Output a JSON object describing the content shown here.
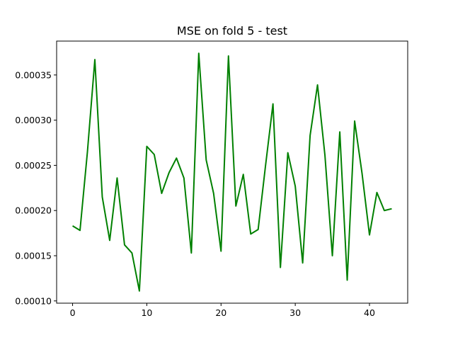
{
  "chart_data": {
    "type": "line",
    "title": "MSE on fold 5 - test",
    "xlabel": "",
    "ylabel": "",
    "xlim": [
      -2.15,
      45.15
    ],
    "ylim": [
      9.75e-05,
      0.0003875
    ],
    "grid": false,
    "x_ticks": [
      0,
      10,
      20,
      30,
      40
    ],
    "x_tick_labels": [
      "0",
      "10",
      "20",
      "30",
      "40"
    ],
    "y_ticks": [
      0.0001,
      0.00015,
      0.0002,
      0.00025,
      0.0003,
      0.00035
    ],
    "y_tick_labels": [
      "0.00010",
      "0.00015",
      "0.00020",
      "0.00025",
      "0.00030",
      "0.00035"
    ],
    "series": [
      {
        "color": "#008000",
        "x": [
          0,
          1,
          2,
          3,
          4,
          5,
          6,
          7,
          8,
          9,
          10,
          11,
          12,
          13,
          14,
          15,
          16,
          17,
          18,
          19,
          20,
          21,
          22,
          23,
          24,
          25,
          26,
          27,
          28,
          29,
          30,
          31,
          32,
          33,
          34,
          35,
          36,
          37,
          38,
          39,
          40,
          41,
          42,
          43
        ],
        "values": [
          0.000183,
          0.000178,
          0.000265,
          0.000367,
          0.000215,
          0.000167,
          0.000236,
          0.000162,
          0.000153,
          0.000111,
          0.000271,
          0.000262,
          0.000219,
          0.000242,
          0.000258,
          0.000236,
          0.000153,
          0.000374,
          0.000256,
          0.000219,
          0.000155,
          0.000371,
          0.000205,
          0.00024,
          0.000174,
          0.000179,
          0.00025,
          0.000318,
          0.000137,
          0.000264,
          0.000227,
          0.000142,
          0.000283,
          0.000339,
          0.000261,
          0.00015,
          0.000287,
          0.000123,
          0.000299,
          0.000241,
          0.000173,
          0.00022,
          0.0002,
          0.000202
        ]
      }
    ]
  }
}
